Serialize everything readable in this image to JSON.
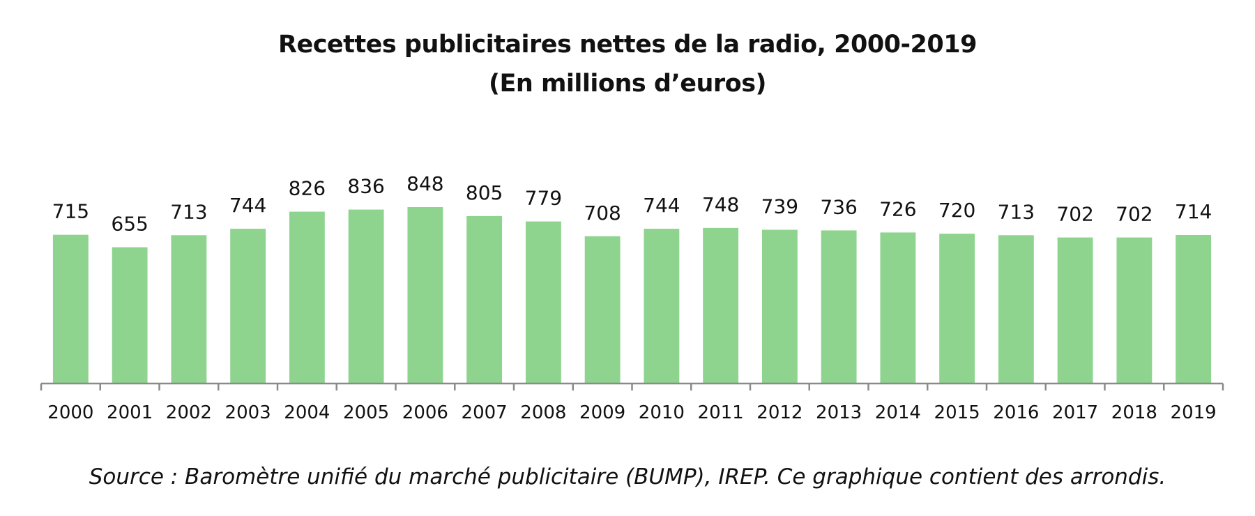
{
  "chart_data": {
    "type": "bar",
    "title": "Recettes publicitaires nettes de la radio, 2000-2019",
    "subtitle": "(En millions d’euros)",
    "xlabel": "",
    "ylabel": "",
    "categories": [
      "2000",
      "2001",
      "2002",
      "2003",
      "2004",
      "2005",
      "2006",
      "2007",
      "2008",
      "2009",
      "2010",
      "2011",
      "2012",
      "2013",
      "2014",
      "2015",
      "2016",
      "2017",
      "2018",
      "2019"
    ],
    "values": [
      715,
      655,
      713,
      744,
      826,
      836,
      848,
      805,
      779,
      708,
      744,
      748,
      739,
      736,
      726,
      720,
      713,
      702,
      702,
      714
    ],
    "ylim": [
      0,
      848
    ],
    "grid": false,
    "legend": "none"
  },
  "colors": {
    "bar": "#8ed48f",
    "axis": "#8a8a8a",
    "text": "#111111"
  },
  "source": "Source : Baromètre unifié du marché publicitaire (BUMP), IREP. Ce graphique contient des arrondis."
}
